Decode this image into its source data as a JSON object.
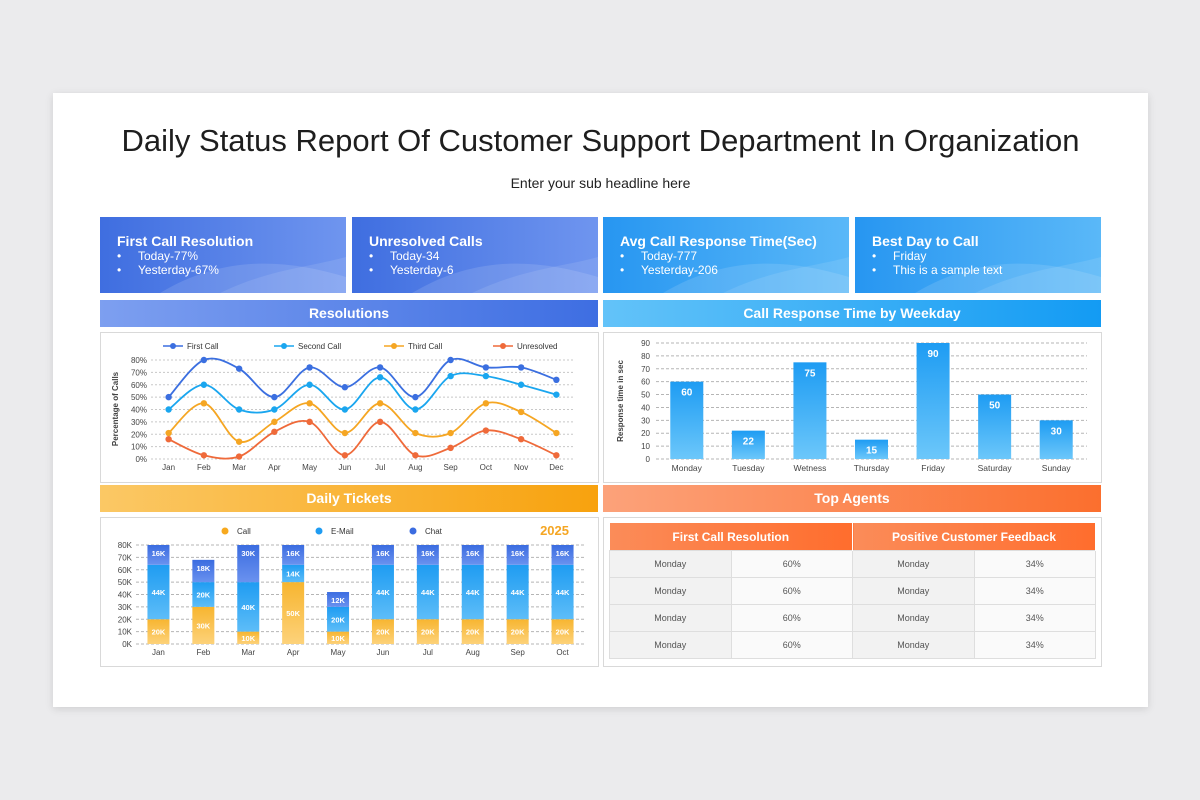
{
  "header": {
    "title": "Daily Status Report Of Customer Support Department In Organization",
    "subtitle": "Enter your sub headline here"
  },
  "kpis": [
    {
      "title": "First Call Resolution",
      "items": [
        "Today-77%",
        "Yesterday-67%"
      ],
      "color_from": "#3f6ee0",
      "color_to": "#6a91ee"
    },
    {
      "title": "Unresolved Calls",
      "items": [
        "Today-34",
        "Yesterday-6"
      ],
      "color_from": "#3f6ee0",
      "color_to": "#6a91ee"
    },
    {
      "title": "Avg Call Response Time(Sec)",
      "items": [
        "Today-777",
        "Yesterday-206"
      ],
      "color_from": "#2a99f2",
      "color_to": "#56b5f7"
    },
    {
      "title": "Best Day to Call",
      "items": [
        "Friday",
        "This is a sample text"
      ],
      "color_from": "#2a99f2",
      "color_to": "#56b5f7"
    }
  ],
  "sections": {
    "resolutions": "Resolutions",
    "response_time": "Call Response Time by Weekday",
    "daily_tickets": "Daily Tickets",
    "top_agents": "Top Agents"
  },
  "colors": {
    "blue_band": "#4a78e3",
    "light_blue_band": "#1aa3f5",
    "orange_band": "#f9a614",
    "coral_band": "#fb7a3c",
    "first_call": "#3b6fe0",
    "second_call": "#1aa6ef",
    "third_call": "#f5a623",
    "unresolved": "#ef6a3a"
  },
  "chart_data": [
    {
      "type": "line",
      "ylabel": "Percentage of Calls",
      "categories": [
        "Jan",
        "Feb",
        "Mar",
        "Apr",
        "May",
        "Jun",
        "Jul",
        "Aug",
        "Sep",
        "Oct",
        "Nov",
        "Dec"
      ],
      "yticks": [
        "0%",
        "10%",
        "20%",
        "30%",
        "40%",
        "50%",
        "60%",
        "70%",
        "80%"
      ],
      "ylim": [
        0,
        80
      ],
      "legend_position": "top",
      "series": [
        {
          "name": "First Call",
          "values": [
            50,
            80,
            73,
            50,
            74,
            58,
            74,
            50,
            80,
            74,
            74,
            64
          ]
        },
        {
          "name": "Second Call",
          "values": [
            40,
            60,
            40,
            40,
            60,
            40,
            66,
            40,
            67,
            67,
            60,
            52
          ]
        },
        {
          "name": "Third Call",
          "values": [
            21,
            45,
            14,
            30,
            45,
            21,
            45,
            21,
            21,
            45,
            38,
            21
          ]
        },
        {
          "name": "Unresolved",
          "values": [
            16,
            3,
            2,
            22,
            30,
            3,
            30,
            3,
            9,
            23,
            16,
            3
          ]
        }
      ]
    },
    {
      "type": "bar",
      "ylabel": "Response time in sec",
      "categories": [
        "Monday",
        "Tuesday",
        "Wetness",
        "Thursday",
        "Friday",
        "Saturday",
        "Sunday"
      ],
      "values": [
        60,
        22,
        75,
        15,
        90,
        50,
        30
      ],
      "yticks": [
        "0",
        "10",
        "20",
        "30",
        "40",
        "50",
        "60",
        "70",
        "80",
        "90"
      ],
      "ylim": [
        0,
        90
      ]
    },
    {
      "type": "bar",
      "stacked": true,
      "year": "2025",
      "categories": [
        "Jan",
        "Feb",
        "Mar",
        "Apr",
        "May",
        "Jun",
        "Jul",
        "Aug",
        "Sep",
        "Oct"
      ],
      "yticks": [
        "0K",
        "10K",
        "20K",
        "30K",
        "40K",
        "50K",
        "60K",
        "70K",
        "80K"
      ],
      "ylim": [
        0,
        80
      ],
      "legend_position": "top",
      "series": [
        {
          "name": "Call",
          "values": [
            20,
            30,
            10,
            50,
            10,
            20,
            20,
            20,
            20,
            20
          ],
          "labels": [
            "20K",
            "30K",
            "10K",
            "50K",
            "10K",
            "20K",
            "20K",
            "20K",
            "20K",
            "20K"
          ]
        },
        {
          "name": "E-Mail",
          "values": [
            44,
            20,
            40,
            14,
            20,
            44,
            44,
            44,
            44,
            44
          ],
          "labels": [
            "44K",
            "20K",
            "40K",
            "14K",
            "20K",
            "44K",
            "44K",
            "44K",
            "44K",
            "44K"
          ]
        },
        {
          "name": "Chat",
          "values": [
            16,
            18,
            30,
            16,
            12,
            16,
            16,
            16,
            16,
            16
          ],
          "labels": [
            "16K",
            "18K",
            "30K",
            "16K",
            "12K",
            "16K",
            "16K",
            "16K",
            "16K",
            "16K"
          ]
        }
      ]
    }
  ],
  "agents": {
    "headers": [
      "First Call Resolution",
      "Positive Customer Feedback"
    ],
    "rows": [
      [
        "Monday",
        "60%",
        "Monday",
        "34%"
      ],
      [
        "Monday",
        "60%",
        "Monday",
        "34%"
      ],
      [
        "Monday",
        "60%",
        "Monday",
        "34%"
      ],
      [
        "Monday",
        "60%",
        "Monday",
        "34%"
      ]
    ]
  }
}
